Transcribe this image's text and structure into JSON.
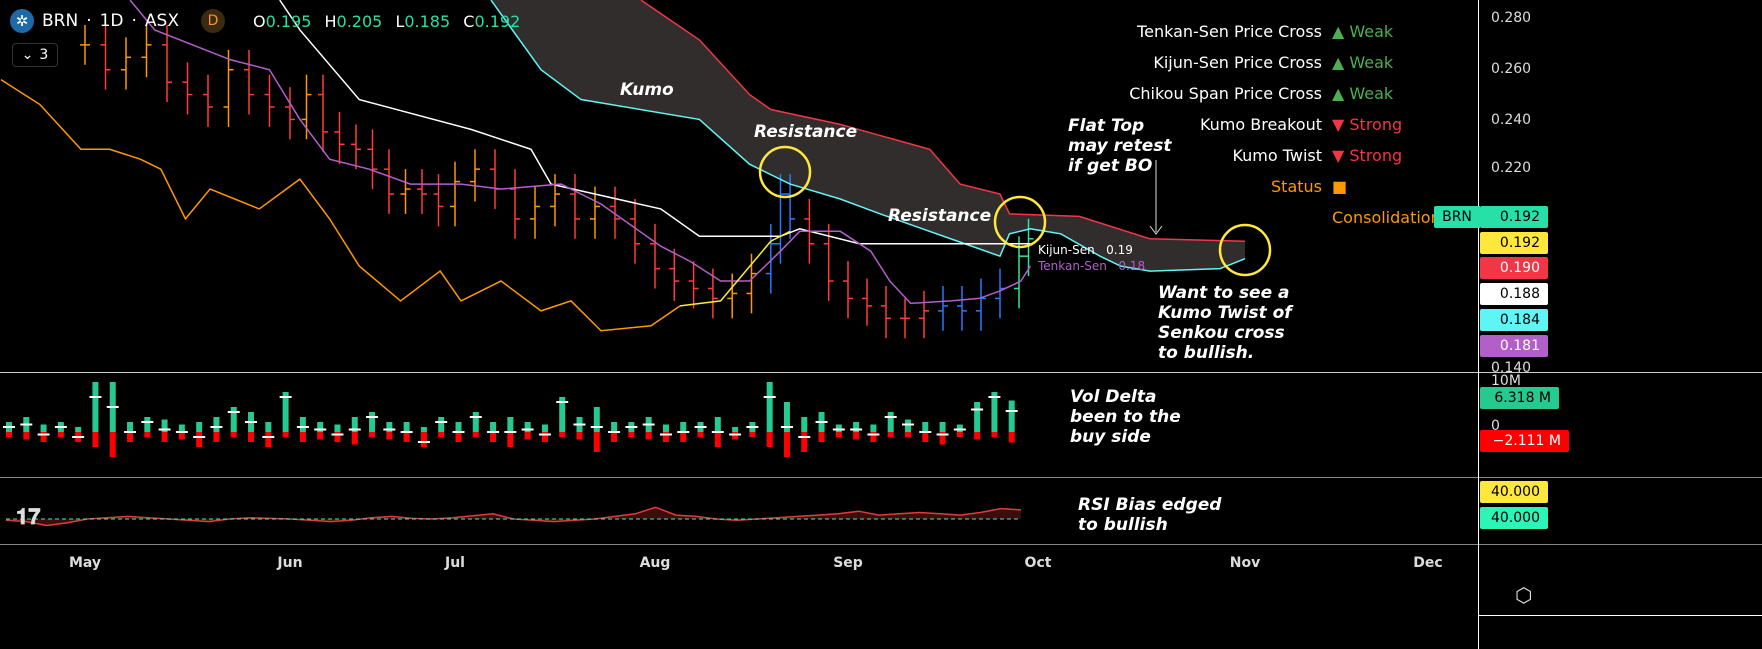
{
  "header": {
    "symbol": "BRN",
    "interval": "1D",
    "exchange": "ASX",
    "badge": "D",
    "open_label": "O",
    "open": "0.195",
    "high_label": "H",
    "high": "0.205",
    "low_label": "L",
    "low": "0.185",
    "close_label": "C",
    "close": "0.192",
    "indicator_count": "3"
  },
  "signals": [
    {
      "name": "Tenkan-Sen Price Cross",
      "arrow": "▲",
      "strength": "Weak",
      "color": "#4caf50"
    },
    {
      "name": "Kijun-Sen Price Cross",
      "arrow": "▲",
      "strength": "Weak",
      "color": "#4caf50"
    },
    {
      "name": "Chikou Span Price Cross",
      "arrow": "▲",
      "strength": "Weak",
      "color": "#4caf50"
    },
    {
      "name": "Kumo Breakout",
      "arrow": "▼",
      "strength": "Strong",
      "color": "#f23645"
    },
    {
      "name": "Kumo Twist",
      "arrow": "▼",
      "strength": "Strong",
      "color": "#f23645"
    },
    {
      "name": "Status",
      "arrow": "■",
      "strength": "Consolidation",
      "color": "#ff9800"
    }
  ],
  "annotations": {
    "kumo": "Kumo",
    "resistance1": "Resistance",
    "resistance2": "Resistance",
    "flat_top": "Flat Top may retest if get BO",
    "kumo_twist": "Want to see a Kumo Twist of Senkou cross to bullish.",
    "vol_delta": "Vol Delta been to the buy side",
    "rsi": "RSI Bias edged to bullish",
    "kijun_label": "Kijun-Sen",
    "kijun_value": "0.19",
    "tenkan_label": "Tenkan-Sen",
    "tenkan_value": "0.18"
  },
  "price_axis": {
    "ticks": [
      "0.280",
      "0.260",
      "0.240",
      "0.220",
      "0.140"
    ],
    "labels": [
      {
        "text": "0.192",
        "tag": "BRN",
        "bg": "#26e0a8",
        "fg": "#000"
      },
      {
        "text": "0.192",
        "bg": "#ffe83b",
        "fg": "#000"
      },
      {
        "text": "0.190",
        "bg": "#f23645",
        "fg": "#fff"
      },
      {
        "text": "0.188",
        "bg": "#ffffff",
        "fg": "#000"
      },
      {
        "text": "0.184",
        "bg": "#5ff5f5",
        "fg": "#000"
      },
      {
        "text": "0.181",
        "bg": "#b35fc9",
        "fg": "#fff"
      }
    ]
  },
  "volume_axis": {
    "ticks": [
      "10M",
      "0"
    ],
    "labels": [
      {
        "text": "6.318 M",
        "bg": "#26c98f",
        "fg": "#000"
      },
      {
        "text": "−2.111 M",
        "bg": "#ff0000",
        "fg": "#fff"
      }
    ]
  },
  "rsi_axis": {
    "labels": [
      {
        "text": "40.000",
        "bg": "#ffe83b",
        "fg": "#000"
      },
      {
        "text": "40.000",
        "bg": "#2cf5b8",
        "fg": "#000"
      }
    ]
  },
  "time_axis": [
    "May",
    "Jun",
    "Jul",
    "Aug",
    "Sep",
    "Oct",
    "Nov",
    "Dec"
  ],
  "chart_data": {
    "type": "line",
    "title": "BRN · 1D · ASX Ichimoku",
    "x_unit": "months since May 1",
    "ylim": [
      0.14,
      0.288
    ],
    "series": [
      {
        "name": "Kumo top (Senkou A/B)",
        "color": "#f23645",
        "points": [
          [
            2.93,
            0.288
          ],
          [
            3.23,
            0.272
          ],
          [
            3.49,
            0.25
          ],
          [
            3.6,
            0.244
          ],
          [
            3.96,
            0.238
          ],
          [
            4.43,
            0.228
          ],
          [
            4.59,
            0.214
          ],
          [
            4.8,
            0.21
          ],
          [
            4.85,
            0.202
          ],
          [
            5.2,
            0.201
          ],
          [
            5.54,
            0.192
          ],
          [
            6.0,
            0.191
          ]
        ]
      },
      {
        "name": "Kumo bottom",
        "color": "#5ff5f5",
        "points": [
          [
            2.18,
            0.288
          ],
          [
            2.43,
            0.26
          ],
          [
            2.63,
            0.248
          ],
          [
            3.23,
            0.24
          ],
          [
            3.49,
            0.222
          ],
          [
            3.7,
            0.214
          ],
          [
            3.96,
            0.208
          ],
          [
            4.17,
            0.202
          ],
          [
            4.54,
            0.192
          ],
          [
            4.8,
            0.185
          ],
          [
            4.85,
            0.194
          ],
          [
            4.96,
            0.196
          ],
          [
            5.11,
            0.194
          ],
          [
            5.3,
            0.185
          ],
          [
            5.4,
            0.181
          ],
          [
            5.54,
            0.179
          ],
          [
            5.88,
            0.18
          ],
          [
            6.0,
            0.184
          ]
        ]
      },
      {
        "name": "Kijun-Sen",
        "color": "#ffffff",
        "points": [
          [
            0.95,
            0.288
          ],
          [
            1.06,
            0.276
          ],
          [
            1.42,
            0.248
          ],
          [
            2.08,
            0.236
          ],
          [
            2.38,
            0.228
          ],
          [
            2.48,
            0.214
          ],
          [
            3.03,
            0.204
          ],
          [
            3.23,
            0.193
          ],
          [
            3.65,
            0.193
          ],
          [
            3.75,
            0.196
          ],
          [
            4.06,
            0.19
          ],
          [
            4.96,
            0.19
          ]
        ]
      },
      {
        "name": "Tenkan-Sen",
        "color": "#b35fc9",
        "points": [
          [
            0.22,
            0.288
          ],
          [
            0.34,
            0.276
          ],
          [
            0.71,
            0.264
          ],
          [
            0.9,
            0.26
          ],
          [
            1.06,
            0.24
          ],
          [
            1.24,
            0.224
          ],
          [
            1.48,
            0.22
          ],
          [
            1.73,
            0.214
          ],
          [
            2.03,
            0.214
          ],
          [
            2.23,
            0.212
          ],
          [
            2.53,
            0.214
          ],
          [
            2.73,
            0.206
          ],
          [
            3.03,
            0.189
          ],
          [
            3.18,
            0.183
          ],
          [
            3.34,
            0.175
          ],
          [
            3.49,
            0.175
          ],
          [
            3.65,
            0.187
          ],
          [
            3.75,
            0.195
          ],
          [
            3.96,
            0.195
          ],
          [
            4.12,
            0.187
          ],
          [
            4.22,
            0.175
          ],
          [
            4.33,
            0.166
          ],
          [
            4.54,
            0.167
          ],
          [
            4.69,
            0.168
          ],
          [
            4.8,
            0.171
          ],
          [
            4.91,
            0.175
          ],
          [
            4.96,
            0.181
          ]
        ]
      },
      {
        "name": "Chikou Span",
        "color": "#ff9800",
        "points": [
          [
            -0.41,
            0.256
          ],
          [
            -0.22,
            0.246
          ],
          [
            -0.02,
            0.228
          ],
          [
            0.12,
            0.228
          ],
          [
            0.27,
            0.224
          ],
          [
            0.37,
            0.22
          ],
          [
            0.49,
            0.2
          ],
          [
            0.61,
            0.212
          ],
          [
            0.85,
            0.204
          ],
          [
            1.06,
            0.216
          ],
          [
            1.24,
            0.2
          ],
          [
            1.42,
            0.181
          ],
          [
            1.67,
            0.167
          ],
          [
            1.91,
            0.179
          ],
          [
            2.03,
            0.167
          ],
          [
            2.23,
            0.175
          ],
          [
            2.43,
            0.163
          ],
          [
            2.58,
            0.167
          ],
          [
            2.73,
            0.155
          ],
          [
            2.98,
            0.157
          ],
          [
            3.13,
            0.165
          ]
        ]
      },
      {
        "name": "Chikou Span (above)",
        "color": "#ffe83b",
        "points": [
          [
            3.13,
            0.165
          ],
          [
            3.34,
            0.167
          ],
          [
            3.6,
            0.191
          ],
          [
            3.7,
            0.195
          ]
        ]
      }
    ],
    "price_closes": [
      [
        0.0,
        0.27
      ],
      [
        0.1,
        0.26
      ],
      [
        0.2,
        0.265
      ],
      [
        0.3,
        0.27
      ],
      [
        0.4,
        0.255
      ],
      [
        0.5,
        0.25
      ],
      [
        0.6,
        0.245
      ],
      [
        0.7,
        0.26
      ],
      [
        0.8,
        0.25
      ],
      [
        0.9,
        0.245
      ],
      [
        1.0,
        0.24
      ],
      [
        1.1,
        0.25
      ],
      [
        1.2,
        0.235
      ],
      [
        1.3,
        0.23
      ],
      [
        1.4,
        0.228
      ],
      [
        1.5,
        0.22
      ],
      [
        1.6,
        0.21
      ],
      [
        1.7,
        0.212
      ],
      [
        1.8,
        0.21
      ],
      [
        1.9,
        0.205
      ],
      [
        2.0,
        0.215
      ],
      [
        2.1,
        0.22
      ],
      [
        2.2,
        0.212
      ],
      [
        2.3,
        0.2
      ],
      [
        2.4,
        0.205
      ],
      [
        2.5,
        0.21
      ],
      [
        2.6,
        0.2
      ],
      [
        2.7,
        0.205
      ],
      [
        2.8,
        0.2
      ],
      [
        2.9,
        0.19
      ],
      [
        3.0,
        0.18
      ],
      [
        3.1,
        0.175
      ],
      [
        3.2,
        0.172
      ],
      [
        3.3,
        0.168
      ],
      [
        3.4,
        0.17
      ],
      [
        3.5,
        0.178
      ],
      [
        3.6,
        0.19
      ],
      [
        3.65,
        0.21
      ],
      [
        3.7,
        0.2
      ],
      [
        3.8,
        0.19
      ],
      [
        3.9,
        0.175
      ],
      [
        4.0,
        0.168
      ],
      [
        4.1,
        0.165
      ],
      [
        4.2,
        0.16
      ],
      [
        4.3,
        0.16
      ],
      [
        4.4,
        0.163
      ],
      [
        4.5,
        0.165
      ],
      [
        4.6,
        0.163
      ],
      [
        4.7,
        0.168
      ],
      [
        4.8,
        0.172
      ],
      [
        4.9,
        0.185
      ],
      [
        4.95,
        0.192
      ]
    ],
    "volume_delta_M": {
      "ylim": [
        -5,
        10
      ],
      "buy": [
        2,
        3,
        1.5,
        2,
        1,
        10,
        10,
        2,
        3,
        2.5,
        1.5,
        2,
        3,
        5,
        4,
        2,
        8,
        3,
        2,
        1.5,
        3,
        4,
        2,
        2,
        1,
        3,
        2,
        4,
        2,
        3,
        2,
        1.5,
        7,
        3,
        5,
        2,
        2,
        3,
        1.5,
        2,
        2,
        3,
        1,
        2,
        10,
        6,
        3,
        4,
        1.5,
        2,
        1.5,
        4,
        2.5,
        2,
        2,
        1.5,
        6,
        8,
        6.3
      ],
      "sell": [
        -1,
        -1.5,
        -2,
        -1,
        -2,
        -3,
        -5,
        -2,
        -1,
        -2,
        -1.5,
        -3,
        -2,
        -1,
        -2,
        -3,
        -1,
        -2,
        -1.5,
        -2,
        -2.5,
        -1,
        -1.5,
        -2,
        -3,
        -1,
        -2,
        -1,
        -2,
        -3,
        -1.5,
        -2,
        -1,
        -1.5,
        -4,
        -2,
        -1,
        -1.5,
        -2,
        -2,
        -1,
        -3,
        -1.5,
        -1,
        -3,
        -5,
        -4,
        -2,
        -1,
        -1.5,
        -2,
        -1,
        -1,
        -2,
        -2.5,
        -1,
        -1.5,
        -1,
        -2.1
      ]
    },
    "rsi_bias": {
      "ylim": [
        0,
        100
      ],
      "values": [
        38,
        36,
        30,
        34,
        40,
        42,
        44,
        42,
        40,
        38,
        36,
        40,
        42,
        41,
        40,
        38,
        36,
        38,
        42,
        44,
        41,
        40,
        42,
        45,
        48,
        40,
        38,
        36,
        38,
        40,
        44,
        48,
        58,
        46,
        44,
        40,
        38,
        40,
        42,
        44,
        46,
        48,
        52,
        46,
        48,
        50,
        48,
        46,
        50,
        56,
        54
      ]
    }
  }
}
